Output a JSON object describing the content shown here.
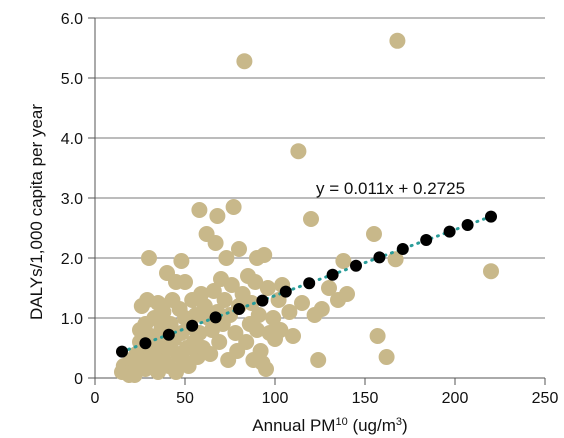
{
  "chart_data": {
    "type": "scatter",
    "xlabel": "Annual PM10 (ug/m3)",
    "xlabel_parts": {
      "pre": "Annual PM",
      "sub": "10",
      "mid": " (ug/m",
      "sup": "3",
      "post": ")"
    },
    "ylabel": "DALYs/1,000 capita per year",
    "xlim": [
      0,
      250
    ],
    "ylim": [
      0,
      6.0
    ],
    "xticks": [
      0,
      50,
      100,
      150,
      200,
      250
    ],
    "xtick_labels": [
      "0",
      "50",
      "100",
      "150",
      "200",
      "250"
    ],
    "yticks": [
      0,
      1.0,
      2.0,
      3.0,
      4.0,
      5.0,
      6.0
    ],
    "ytick_labels": [
      "0",
      "1.0",
      "2.0",
      "3.0",
      "4.0",
      "5.0",
      "6.0"
    ],
    "grid": "horizontal",
    "annotation": "y = 0.011x + 0.2725",
    "trendline": {
      "slope": 0.011,
      "intercept": 0.2725,
      "x_range": [
        15,
        220
      ],
      "style": "dotted",
      "color": "#2a9d9a"
    },
    "series": [
      {
        "marker_color": "#c8b88a",
        "points": [
          [
            15,
            0.1
          ],
          [
            16,
            0.2
          ],
          [
            18,
            0.15
          ],
          [
            19,
            0.05
          ],
          [
            20,
            0.3
          ],
          [
            21,
            0.1
          ],
          [
            22,
            0.05
          ],
          [
            23,
            0.4
          ],
          [
            24,
            0.2
          ],
          [
            25,
            0.6
          ],
          [
            25,
            0.8
          ],
          [
            26,
            1.2
          ],
          [
            27,
            0.3
          ],
          [
            28,
            0.9
          ],
          [
            28,
            0.15
          ],
          [
            29,
            1.3
          ],
          [
            30,
            0.5
          ],
          [
            30,
            2.0
          ],
          [
            31,
            0.7
          ],
          [
            32,
            0.25
          ],
          [
            33,
            1.0
          ],
          [
            34,
            0.4
          ],
          [
            35,
            1.25
          ],
          [
            35,
            0.1
          ],
          [
            36,
            0.6
          ],
          [
            37,
            0.85
          ],
          [
            38,
            1.1
          ],
          [
            38,
            0.3
          ],
          [
            40,
            1.75
          ],
          [
            40,
            0.5
          ],
          [
            41,
            0.2
          ],
          [
            42,
            0.9
          ],
          [
            43,
            1.3
          ],
          [
            44,
            0.65
          ],
          [
            45,
            0.1
          ],
          [
            45,
            1.6
          ],
          [
            46,
            0.4
          ],
          [
            47,
            1.15
          ],
          [
            48,
            0.75
          ],
          [
            48,
            1.95
          ],
          [
            49,
            0.3
          ],
          [
            50,
            1.0
          ],
          [
            50,
            1.6
          ],
          [
            51,
            0.5
          ],
          [
            52,
            0.2
          ],
          [
            53,
            0.85
          ],
          [
            54,
            1.3
          ],
          [
            55,
            0.6
          ],
          [
            56,
            1.05
          ],
          [
            57,
            0.35
          ],
          [
            58,
            2.8
          ],
          [
            58,
            0.75
          ],
          [
            59,
            1.4
          ],
          [
            60,
            0.5
          ],
          [
            61,
            1.2
          ],
          [
            62,
            2.4
          ],
          [
            63,
            1.0
          ],
          [
            64,
            0.4
          ],
          [
            65,
            0.8
          ],
          [
            66,
            1.45
          ],
          [
            67,
            2.25
          ],
          [
            68,
            2.7
          ],
          [
            68,
            1.1
          ],
          [
            69,
            0.6
          ],
          [
            70,
            1.65
          ],
          [
            71,
            0.9
          ],
          [
            72,
            1.3
          ],
          [
            73,
            2.0
          ],
          [
            74,
            0.3
          ],
          [
            75,
            1.05
          ],
          [
            76,
            1.55
          ],
          [
            77,
            2.85
          ],
          [
            78,
            0.75
          ],
          [
            79,
            0.45
          ],
          [
            80,
            2.15
          ],
          [
            80,
            1.2
          ],
          [
            82,
            1.4
          ],
          [
            83,
            5.28
          ],
          [
            84,
            0.6
          ],
          [
            85,
            1.7
          ],
          [
            86,
            0.9
          ],
          [
            87,
            1.25
          ],
          [
            88,
            0.3
          ],
          [
            89,
            1.6
          ],
          [
            90,
            2.0
          ],
          [
            90,
            0.8
          ],
          [
            91,
            1.05
          ],
          [
            92,
            0.45
          ],
          [
            93,
            0.25
          ],
          [
            94,
            2.05
          ],
          [
            95,
            0.15
          ],
          [
            96,
            1.5
          ],
          [
            97,
            0.75
          ],
          [
            99,
            1.0
          ],
          [
            100,
            0.65
          ],
          [
            102,
            1.3
          ],
          [
            103,
            0.8
          ],
          [
            104,
            1.55
          ],
          [
            108,
            1.1
          ],
          [
            110,
            0.7
          ],
          [
            113,
            3.78
          ],
          [
            115,
            1.25
          ],
          [
            120,
            2.65
          ],
          [
            122,
            1.05
          ],
          [
            124,
            0.3
          ],
          [
            126,
            1.15
          ],
          [
            130,
            1.5
          ],
          [
            135,
            1.3
          ],
          [
            138,
            1.95
          ],
          [
            140,
            1.4
          ],
          [
            155,
            2.4
          ],
          [
            157,
            0.7
          ],
          [
            162,
            0.35
          ],
          [
            167,
            1.98
          ],
          [
            168,
            5.62
          ],
          [
            220,
            1.78
          ]
        ]
      },
      {
        "marker_color": "#000000",
        "points": [
          [
            15,
            0.44
          ],
          [
            28,
            0.58
          ],
          [
            41,
            0.72
          ],
          [
            54,
            0.87
          ],
          [
            67,
            1.01
          ],
          [
            80,
            1.15
          ],
          [
            93,
            1.29
          ],
          [
            106,
            1.44
          ],
          [
            119,
            1.58
          ],
          [
            132,
            1.72
          ],
          [
            145,
            1.87
          ],
          [
            158,
            2.01
          ],
          [
            171,
            2.15
          ],
          [
            184,
            2.3
          ],
          [
            197,
            2.44
          ],
          [
            207,
            2.55
          ],
          [
            220,
            2.69
          ]
        ]
      }
    ]
  }
}
